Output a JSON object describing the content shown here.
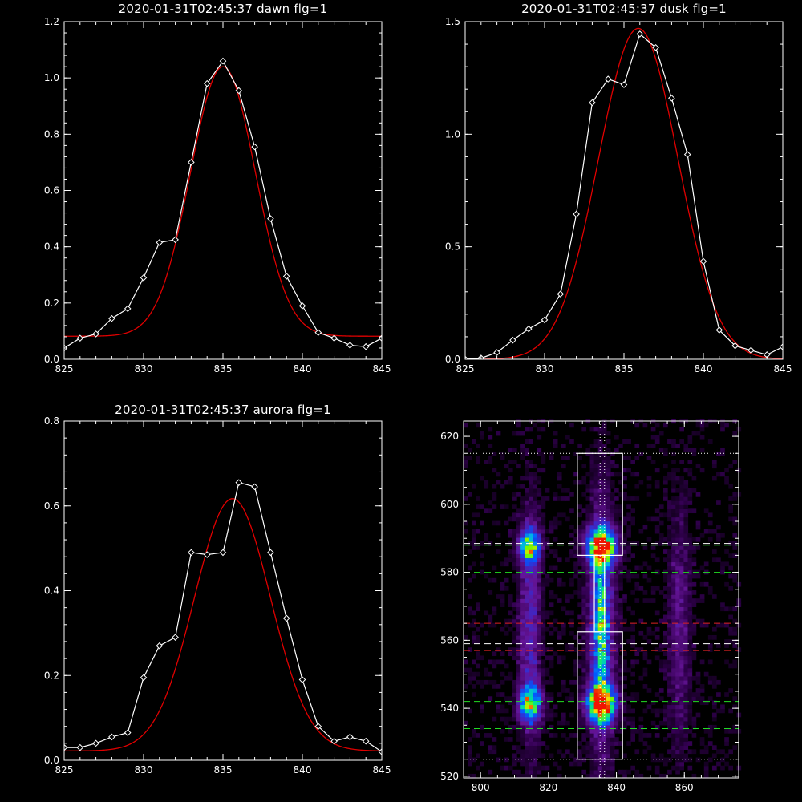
{
  "colors": {
    "background": "#000000",
    "axes": "#ffffff",
    "data_line": "#ffffff",
    "fit_line": "#e00000",
    "dotted_line": "#ffffff",
    "green_dash": "#22dd22",
    "red_dash": "#dd2222",
    "white_dash": "#ffffff"
  },
  "chart_data": [
    {
      "type": "line",
      "title": "2020-01-31T02:45:37 dawn flg=1",
      "xlim": [
        825,
        845
      ],
      "ylim": [
        0,
        1.2
      ],
      "xticks": [
        "825",
        "830",
        "835",
        "840",
        "845"
      ],
      "yticks": [
        "0.0",
        "0.2",
        "0.4",
        "0.6",
        "0.8",
        "1.0",
        "1.2"
      ],
      "series": [
        {
          "role": "data",
          "marker": "diamond",
          "x": [
            825,
            826,
            827,
            828,
            829,
            830,
            831,
            832,
            833,
            834,
            835,
            836,
            837,
            838,
            839,
            840,
            841,
            842,
            843,
            844,
            845
          ],
          "y": [
            0.04,
            0.075,
            0.09,
            0.145,
            0.18,
            0.29,
            0.415,
            0.425,
            0.7,
            0.98,
            1.06,
            0.955,
            0.755,
            0.5,
            0.295,
            0.19,
            0.095,
            0.075,
            0.05,
            0.045,
            0.075
          ]
        },
        {
          "role": "fit",
          "curve": "gaussian",
          "base": 0.082,
          "amp": 0.958,
          "center": 835.0,
          "sigma": 2.05
        }
      ]
    },
    {
      "type": "line",
      "title": "2020-01-31T02:45:37 dusk flg=1",
      "xlim": [
        825,
        845
      ],
      "ylim": [
        0,
        1.5
      ],
      "xticks": [
        "825",
        "830",
        "835",
        "840",
        "845"
      ],
      "yticks": [
        "0.0",
        "0.5",
        "1.0",
        "1.5"
      ],
      "series": [
        {
          "role": "data",
          "marker": "diamond",
          "x": [
            825,
            826,
            827,
            828,
            829,
            830,
            831,
            832,
            833,
            834,
            835,
            836,
            837,
            838,
            839,
            840,
            841,
            842,
            843,
            844,
            845
          ],
          "y": [
            0.0,
            0.005,
            0.03,
            0.085,
            0.135,
            0.175,
            0.29,
            0.645,
            1.14,
            1.245,
            1.22,
            1.445,
            1.385,
            1.16,
            0.91,
            0.435,
            0.13,
            0.06,
            0.04,
            0.02,
            0.055
          ]
        },
        {
          "role": "fit",
          "curve": "gaussian",
          "base": 0.0,
          "amp": 1.47,
          "center": 835.9,
          "sigma": 2.5
        }
      ]
    },
    {
      "type": "line",
      "title": "2020-01-31T02:45:37 aurora flg=1",
      "xlim": [
        825,
        845
      ],
      "ylim": [
        0,
        0.8
      ],
      "xticks": [
        "825",
        "830",
        "835",
        "840",
        "845"
      ],
      "yticks": [
        "0.0",
        "0.2",
        "0.4",
        "0.6",
        "0.8"
      ],
      "series": [
        {
          "role": "data",
          "marker": "diamond",
          "x": [
            825,
            826,
            827,
            828,
            829,
            830,
            831,
            832,
            833,
            834,
            835,
            836,
            837,
            838,
            839,
            840,
            841,
            842,
            843,
            844,
            845
          ],
          "y": [
            0.03,
            0.03,
            0.04,
            0.055,
            0.065,
            0.195,
            0.27,
            0.29,
            0.49,
            0.485,
            0.49,
            0.655,
            0.645,
            0.49,
            0.335,
            0.19,
            0.08,
            0.045,
            0.055,
            0.045,
            0.02
          ]
        },
        {
          "role": "fit",
          "curve": "gaussian",
          "base": 0.022,
          "amp": 0.595,
          "center": 835.6,
          "sigma": 2.4
        }
      ]
    },
    {
      "type": "heatmap",
      "title": "",
      "xlim": [
        795,
        876
      ],
      "ylim": [
        519.5,
        624.5
      ],
      "xticks": [
        "800",
        "820",
        "840",
        "860"
      ],
      "yticks": [
        "520",
        "540",
        "560",
        "580",
        "600",
        "620"
      ],
      "colormap": "rainbow",
      "sources": [
        {
          "x": 814,
          "y": 587,
          "sx": 2.2,
          "sy": 3.5,
          "amp": 0.65
        },
        {
          "x": 814,
          "y": 541,
          "sx": 2.2,
          "sy": 3.5,
          "amp": 0.65
        },
        {
          "x": 835,
          "y": 587,
          "sx": 2.8,
          "sy": 3.5,
          "amp": 1.0
        },
        {
          "x": 835,
          "y": 541,
          "sx": 2.8,
          "sy": 3.5,
          "amp": 1.0
        },
        {
          "x": 835,
          "y": 564,
          "sx": 1.4,
          "sy": 14,
          "amp": 0.4
        },
        {
          "x": 814,
          "y": 563,
          "sx": 2.2,
          "sy": 24,
          "amp": 0.28
        },
        {
          "x": 835,
          "y": 563,
          "sx": 2.8,
          "sy": 26,
          "amp": 0.34
        },
        {
          "x": 858,
          "y": 563,
          "sx": 2.4,
          "sy": 24,
          "amp": 0.18
        }
      ],
      "boxes": [
        {
          "x0": 828.5,
          "x1": 841.8,
          "y0": 585,
          "y1": 615
        },
        {
          "x0": 828.5,
          "x1": 841.8,
          "y0": 525,
          "y1": 562.5
        },
        {
          "x0": 833.5,
          "x1": 836.5,
          "y0": 562.5,
          "y1": 585
        }
      ],
      "vlines_dotted": [
        835.2,
        836.5
      ],
      "hlines_dotted": [
        615,
        525
      ],
      "hlines_white_dash": [
        588.5,
        559
      ],
      "hlines_green_dash": [
        588,
        580,
        542,
        534
      ],
      "hlines_red_dash": [
        565,
        557
      ]
    }
  ]
}
